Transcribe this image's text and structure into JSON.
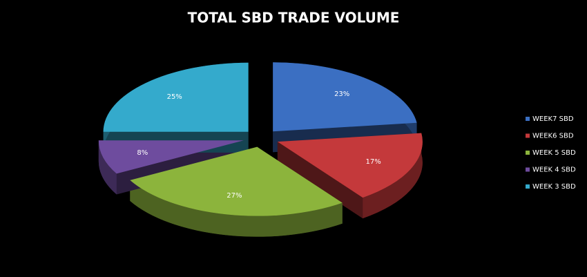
{
  "chart_data": {
    "type": "pie",
    "title": "TOTAL SBD TRADE VOLUME",
    "categories": [
      "WEEK7 SBD",
      "WEEK6 SBD",
      "WEEK 5 SBD",
      "WEEK 4 SBD",
      "WEEK 3 SBD"
    ],
    "values": [
      23,
      17,
      27,
      8,
      25
    ],
    "value_labels": [
      "23%",
      "17%",
      "27%",
      "8%",
      "25%"
    ],
    "colors": [
      "#3b6fc2",
      "#c4393b",
      "#8cb43c",
      "#6e4c9e",
      "#34aacc"
    ],
    "legend": "right"
  }
}
